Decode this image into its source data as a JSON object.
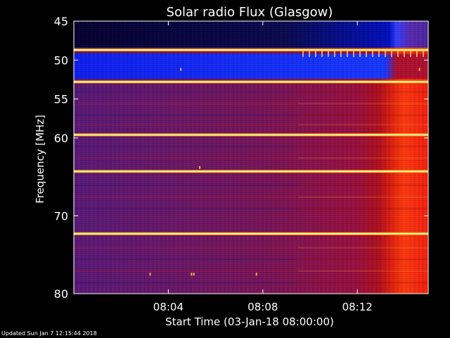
{
  "chart_data": {
    "type": "heatmap",
    "title": "Solar radio Flux (Glasgow)",
    "xlabel": "Start Time (03-Jan-18 08:00:00)",
    "ylabel": "Frequency [MHz]",
    "x_unit": "minutes after 08:00",
    "xlim": [
      0,
      15
    ],
    "ylim": [
      80,
      45
    ],
    "x_ticks": [
      {
        "value": 4,
        "label": "08:04"
      },
      {
        "value": 8,
        "label": "08:08"
      },
      {
        "value": 12,
        "label": "08:12"
      }
    ],
    "y_ticks": [
      45,
      50,
      55,
      60,
      70,
      80
    ],
    "event_onset_minute": 9.5,
    "background_levels": {
      "before_onset": "low (purple/red)",
      "after_onset": "high (red/orange)"
    },
    "persistent_emission_lines_mhz": [
      48.7,
      52.8,
      59.6,
      64.3,
      72.3
    ],
    "colors": {
      "background": "#000000",
      "low": "#3a1aa0",
      "mid": "#a01020",
      "high": "#ff3a10",
      "peak": "#ffff90"
    }
  },
  "footer": {
    "updated": "Updated Sun Jan  7 12:15:44 2018"
  }
}
